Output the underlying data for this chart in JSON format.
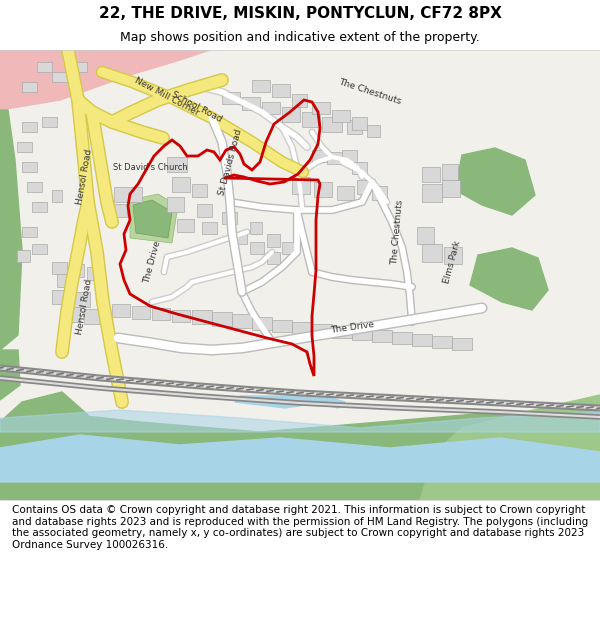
{
  "title": "22, THE DRIVE, MISKIN, PONTYCLUN, CF72 8PX",
  "subtitle": "Map shows position and indicative extent of the property.",
  "footer": "Contains OS data © Crown copyright and database right 2021. This information is subject to Crown copyright and database rights 2023 and is reproduced with the permission of HM Land Registry. The polygons (including the associated geometry, namely x, y co-ordinates) are subject to Crown copyright and database rights 2023 Ordnance Survey 100026316.",
  "map_bg": "#f2f0eb",
  "road_yellow": "#f5e87c",
  "road_yellow_border": "#d4c84a",
  "building_fill": "#d8d8d8",
  "building_stroke": "#aaaaaa",
  "green_fill": "#8ab87a",
  "green_fill2": "#9dc88a",
  "park_fill": "#b8d4a0",
  "river_fill": "#a8d4e8",
  "red_polygon": "#cc0000",
  "pink_fill": "#f0b8b8",
  "title_fontsize": 11,
  "subtitle_fontsize": 9,
  "footer_fontsize": 7.5
}
